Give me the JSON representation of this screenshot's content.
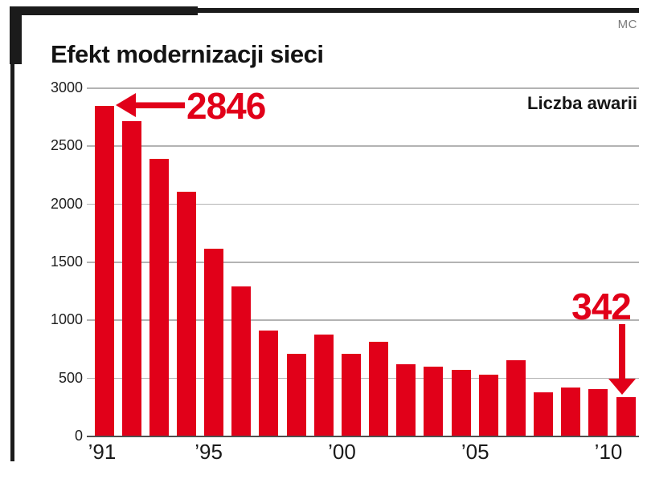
{
  "header": {
    "title": "Efekt modernizacji sieci",
    "credit": "MC"
  },
  "chart_data": {
    "type": "bar",
    "title": "Efekt modernizacji sieci",
    "legend_label": "Liczba awarii",
    "categories": [
      1991,
      1992,
      1993,
      1994,
      1995,
      1996,
      1997,
      1998,
      1999,
      2000,
      2001,
      2002,
      2003,
      2004,
      2005,
      2006,
      2007,
      2008,
      2009,
      2010
    ],
    "values": [
      2846,
      2720,
      2390,
      2110,
      1620,
      1290,
      915,
      715,
      880,
      710,
      815,
      620,
      600,
      575,
      530,
      655,
      380,
      420,
      405,
      342
    ],
    "ylim": [
      0,
      3000
    ],
    "y_ticks": [
      0,
      500,
      1000,
      1500,
      2000,
      2500,
      3000
    ],
    "y_tick_labels": [
      "0",
      "500",
      "1000",
      "1500",
      "2000",
      "2500",
      "3000"
    ],
    "x_ticks": [
      {
        "index": 0,
        "label": "’91"
      },
      {
        "index": 4,
        "label": "’95"
      },
      {
        "index": 9,
        "label": "’00"
      },
      {
        "index": 14,
        "label": "’05"
      },
      {
        "index": 19,
        "label": "’10"
      }
    ],
    "grid": true,
    "legend_position": "top-right",
    "annotations": [
      {
        "text": "2846",
        "target_year": 1991,
        "arrow_direction": "left"
      },
      {
        "text": "342",
        "target_year": 2010,
        "arrow_direction": "down"
      }
    ],
    "colors": {
      "bar": "#e10019",
      "annotation": "#e10019",
      "gridline": "#b3b3b3",
      "baseline": "#4f4f4f",
      "frame": "#1b1b1b",
      "text": "#1a1a1a",
      "muted": "#7a7a7a"
    }
  }
}
